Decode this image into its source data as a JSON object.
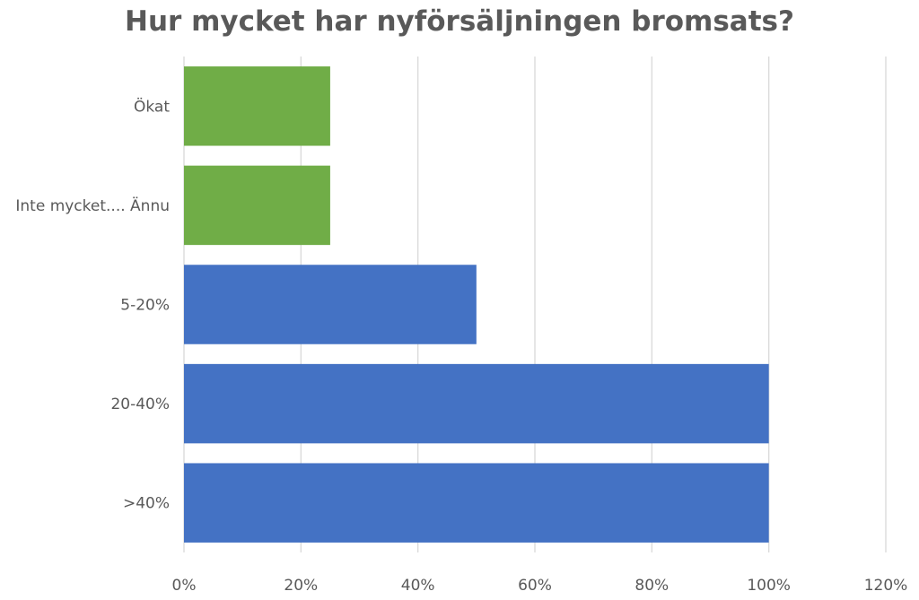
{
  "chart_data": {
    "type": "bar",
    "orientation": "horizontal",
    "title": "Hur mycket har nyförsäljningen bromsats?",
    "categories": [
      "Ökat",
      "Inte mycket.... Ännu",
      "5-20%",
      "20-40%",
      ">40%"
    ],
    "values": [
      0.25,
      0.25,
      0.5,
      1.0,
      1.0
    ],
    "bar_colors": [
      "#70AD47",
      "#70AD47",
      "#4472C4",
      "#4472C4",
      "#4472C4"
    ],
    "x_ticks": [
      "0%",
      "20%",
      "40%",
      "60%",
      "80%",
      "100%",
      "120%"
    ],
    "xlim": [
      0,
      1.2
    ],
    "grid": "vertical",
    "legend": "none"
  }
}
